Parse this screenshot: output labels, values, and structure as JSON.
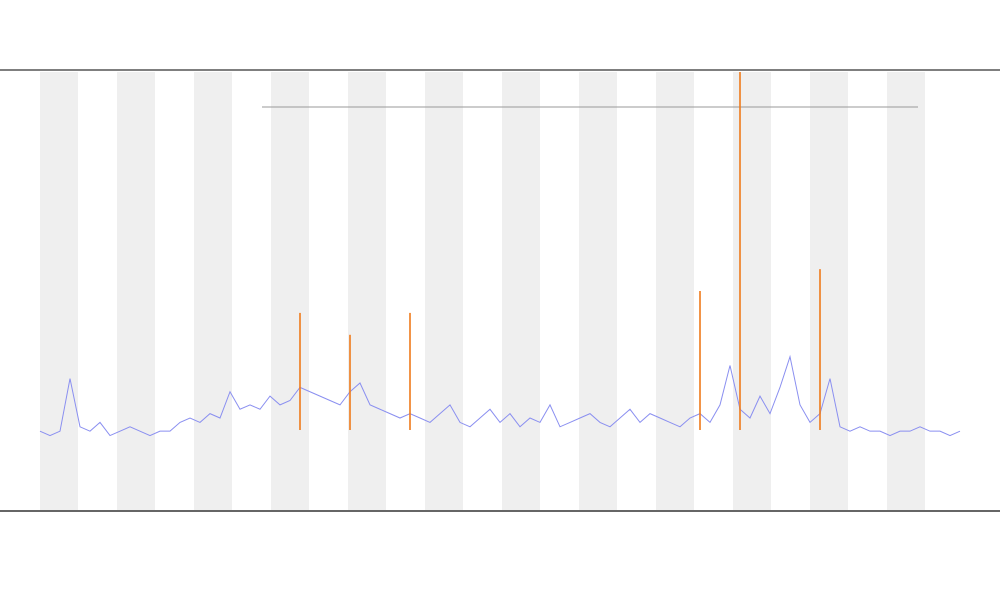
{
  "chart_data": {
    "type": "line",
    "ylim": [
      0,
      100
    ],
    "series": [
      {
        "color": "#8a8ff0",
        "values": [
          18,
          17,
          18,
          30,
          19,
          18,
          20,
          17,
          18,
          19,
          18,
          17,
          18,
          18,
          20,
          21,
          20,
          22,
          21,
          27,
          23,
          24,
          23,
          26,
          24,
          25,
          28,
          27,
          26,
          25,
          24,
          27,
          29,
          24,
          23,
          22,
          21,
          22,
          21,
          20,
          22,
          24,
          20,
          19,
          21,
          23,
          20,
          22,
          19,
          21,
          20,
          24,
          19,
          20,
          21,
          22,
          20,
          19,
          21,
          23,
          20,
          22,
          21,
          20,
          19,
          21,
          22,
          20,
          24,
          33,
          23,
          21,
          26,
          22,
          28,
          35,
          24,
          20,
          22,
          30,
          19,
          18,
          19,
          18,
          18,
          17,
          18,
          18,
          19,
          18,
          18,
          17,
          18
        ]
      },
      {
        "color": "#f07a1a",
        "style": "spike",
        "values": [
          null,
          null,
          null,
          null,
          null,
          null,
          null,
          null,
          null,
          null,
          null,
          null,
          null,
          null,
          null,
          null,
          null,
          null,
          null,
          null,
          null,
          null,
          null,
          null,
          null,
          null,
          45,
          null,
          null,
          null,
          null,
          40,
          null,
          null,
          null,
          null,
          null,
          45,
          null,
          null,
          null,
          null,
          null,
          null,
          null,
          null,
          null,
          null,
          null,
          null,
          null,
          null,
          null,
          null,
          null,
          null,
          null,
          null,
          null,
          null,
          null,
          null,
          null,
          null,
          null,
          null,
          50,
          null,
          null,
          null,
          100,
          null,
          null,
          null,
          null,
          null,
          null,
          null,
          55,
          null,
          null,
          null,
          null,
          null,
          null,
          null,
          null,
          null,
          null,
          null,
          null,
          null,
          null
        ]
      }
    ]
  }
}
